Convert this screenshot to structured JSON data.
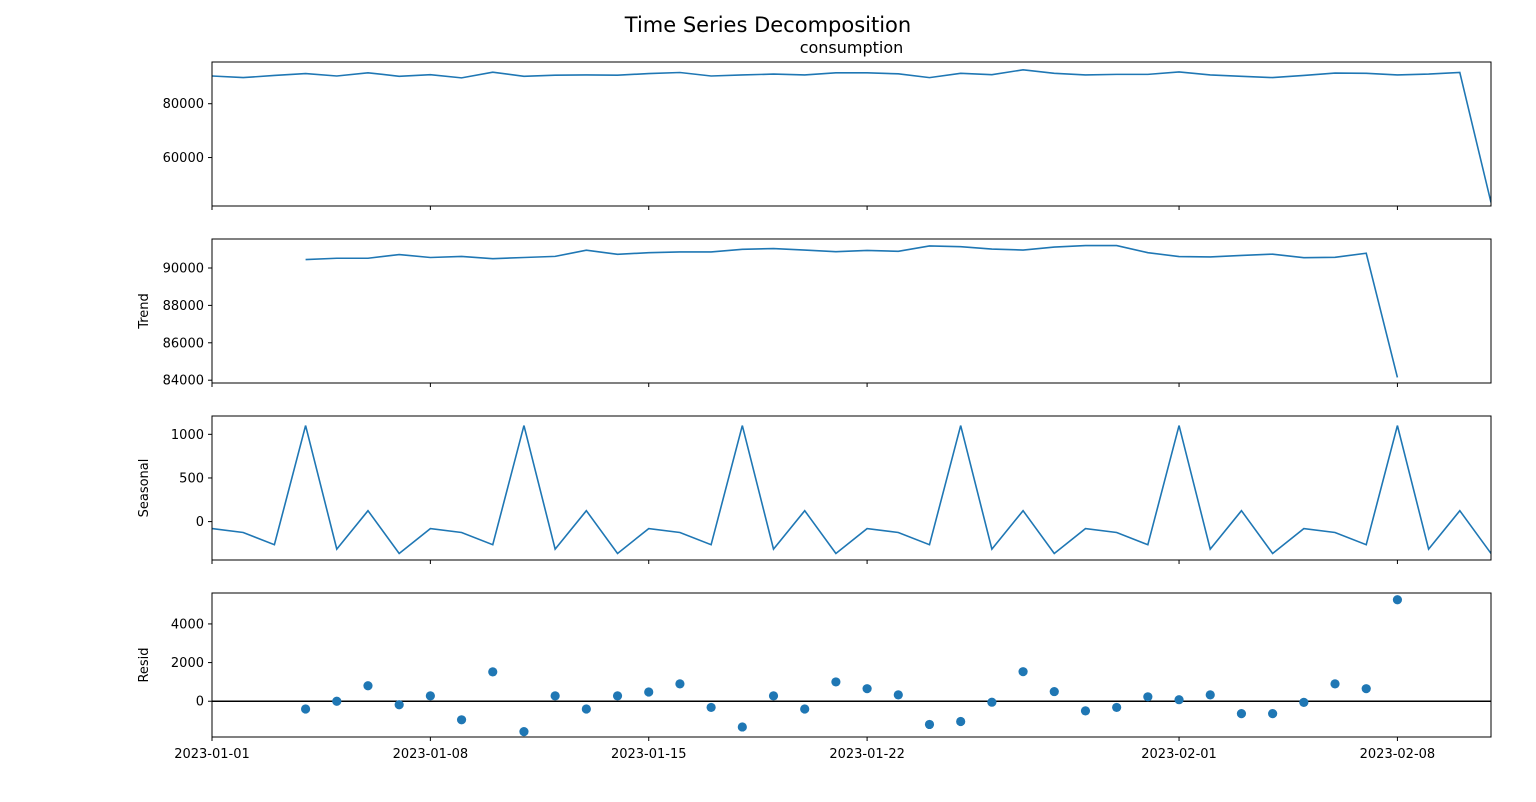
{
  "chart_data": {
    "type": "line",
    "title": "Time Series Decomposition",
    "x_start": "2023-01-01",
    "x_end": "2023-02-11",
    "x_ticks": [
      "2023-01-01",
      "2023-01-08",
      "2023-01-15",
      "2023-01-22",
      "2023-02-01",
      "2023-02-08"
    ],
    "line_color": "#1f77b4",
    "panels": [
      {
        "id": "observed",
        "subtitle": "consumption",
        "ylabel": "",
        "type": "line",
        "ylim": [
          42000,
          95500
        ],
        "yticks": [
          60000,
          80000
        ],
        "ytick_labels": [
          "60000",
          "80000"
        ],
        "x_start": "2023-01-01",
        "values": [
          90300,
          89700,
          90500,
          91200,
          90300,
          91500,
          90200,
          90800,
          89600,
          91700,
          90200,
          90600,
          90700,
          90600,
          91200,
          91600,
          90300,
          90700,
          91000,
          90700,
          91500,
          91500,
          91100,
          89700,
          91300,
          90800,
          92600,
          91300,
          90700,
          90900,
          90900,
          91800,
          90700,
          90200,
          89700,
          90500,
          91400,
          91300,
          90700,
          91000,
          91600,
          43300
        ]
      },
      {
        "id": "trend",
        "subtitle": "",
        "ylabel": "Trend",
        "type": "line",
        "ylim": [
          83850,
          91550
        ],
        "yticks": [
          84000,
          86000,
          88000,
          90000
        ],
        "ytick_labels": [
          "84000",
          "86000",
          "88000",
          "90000"
        ],
        "x_start": "2023-01-04",
        "values": [
          90450,
          90520,
          90520,
          90720,
          90560,
          90620,
          90500,
          90560,
          90620,
          90950,
          90730,
          90820,
          90860,
          90860,
          91000,
          91040,
          90960,
          90870,
          90940,
          90890,
          91180,
          91140,
          91010,
          90960,
          91120,
          91200,
          91200,
          90820,
          90610,
          90590,
          90670,
          90740,
          90550,
          90570,
          90790,
          84150
        ]
      },
      {
        "id": "seasonal",
        "subtitle": "",
        "ylabel": "Seasonal",
        "type": "line",
        "ylim": [
          -440,
          1210
        ],
        "yticks": [
          0,
          500,
          1000
        ],
        "ytick_labels": [
          "0",
          "500",
          "1000"
        ],
        "x_start": "2023-01-01",
        "values": [
          -80,
          -125,
          -265,
          1100,
          -315,
          125,
          -365,
          -80,
          -125,
          -265,
          1100,
          -315,
          125,
          -365,
          -80,
          -125,
          -265,
          1100,
          -315,
          125,
          -365,
          -80,
          -125,
          -265,
          1100,
          -315,
          125,
          -365,
          -80,
          -125,
          -265,
          1100,
          -315,
          125,
          -365,
          -80,
          -125,
          -265,
          1100,
          -315,
          125,
          -365
        ]
      },
      {
        "id": "resid",
        "subtitle": "",
        "ylabel": "Resid",
        "type": "scatter",
        "ylim": [
          -1850,
          5600
        ],
        "yticks": [
          0,
          2000,
          4000
        ],
        "ytick_labels": [
          "0",
          "2000",
          "4000"
        ],
        "x_start": "2023-01-04",
        "baseline": 0,
        "values": [
          -400,
          0,
          800,
          -180,
          280,
          -960,
          1520,
          -1570,
          280,
          -400,
          280,
          480,
          900,
          -320,
          -1330,
          280,
          -400,
          1000,
          650,
          330,
          -1200,
          -1050,
          -50,
          1530,
          500,
          -500,
          -320,
          230,
          80,
          330,
          -640,
          -640,
          -60,
          900,
          650,
          5250
        ]
      }
    ]
  }
}
